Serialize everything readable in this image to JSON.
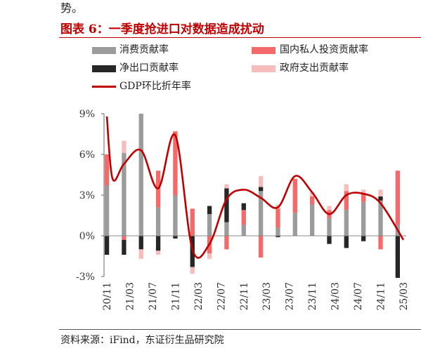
{
  "header": {
    "top_text": "势。",
    "title": "图表 6：一季度抢进口对数据造成扰动"
  },
  "legend": [
    {
      "label": "消费贡献率",
      "color": "#9b9b9b",
      "kind": "bar"
    },
    {
      "label": "国内私人投资贡献率",
      "color": "#f46a6a",
      "kind": "bar"
    },
    {
      "label": "净出口贡献率",
      "color": "#262626",
      "kind": "bar"
    },
    {
      "label": "政府支出贡献率",
      "color": "#f7bcbc",
      "kind": "bar"
    },
    {
      "label": "GDP环比折年率",
      "color": "#c00000",
      "kind": "line"
    }
  ],
  "source": "资料来源：iFind，东证衍生品研究院",
  "chart_data": {
    "type": "bar",
    "stacked": true,
    "ylim": [
      -3,
      9
    ],
    "yticks": [
      "9%",
      "6%",
      "3%",
      "0%",
      "-3%"
    ],
    "ytick_values": [
      9,
      6,
      3,
      0,
      -3
    ],
    "categories": [
      "20/11",
      "20/12",
      "21/01",
      "21/02",
      "21/03",
      "21/04",
      "21/05",
      "21/06",
      "21/07",
      "21/08",
      "21/09",
      "21/10",
      "21/11",
      "21/12",
      "22/01",
      "22/02",
      "22/03",
      "22/04",
      "22/05",
      "22/06",
      "22/07",
      "22/08",
      "22/09",
      "22/10",
      "22/11",
      "22/12",
      "23/01",
      "23/02",
      "23/03",
      "23/04",
      "23/05",
      "23/06",
      "23/07",
      "23/08",
      "23/09",
      "23/10",
      "23/11",
      "23/12",
      "24/01",
      "24/02",
      "24/03",
      "24/04",
      "24/05",
      "24/06",
      "24/07",
      "24/08",
      "24/09",
      "24/10",
      "24/11",
      "24/12",
      "25/01",
      "25/02",
      "25/03"
    ],
    "xtick_labels": [
      "20/11",
      "21/03",
      "21/07",
      "21/11",
      "22/03",
      "22/07",
      "22/11",
      "23/03",
      "23/07",
      "23/11",
      "24/03",
      "24/07",
      "24/11",
      "25/03"
    ],
    "bars": [
      {
        "x": "20/11",
        "consumption": 3.7,
        "private_investment": 2.3,
        "net_exports": -1.4,
        "government": 0.0
      },
      {
        "x": "21/02",
        "consumption": 6.1,
        "private_investment": -0.3,
        "net_exports": -1.1,
        "government": 0.9
      },
      {
        "x": "21/05",
        "consumption": 9.0,
        "private_investment": 0.0,
        "net_exports": -1.0,
        "government": -0.7
      },
      {
        "x": "21/08",
        "consumption": 2.1,
        "private_investment": 2.7,
        "net_exports": -1.1,
        "government": -0.3
      },
      {
        "x": "21/11",
        "consumption": 3.0,
        "private_investment": 4.7,
        "net_exports": -0.2,
        "government": 0.0
      },
      {
        "x": "22/02",
        "consumption": 0.0,
        "private_investment": 2.0,
        "net_exports": -2.3,
        "government": -0.5
      },
      {
        "x": "22/05",
        "consumption": 1.6,
        "private_investment": -1.3,
        "net_exports": 0.6,
        "government": -0.4
      },
      {
        "x": "22/08",
        "consumption": 1.0,
        "private_investment": -1.0,
        "net_exports": 2.5,
        "government": 0.3
      },
      {
        "x": "22/11",
        "consumption": 0.8,
        "private_investment": 1.1,
        "net_exports": 0.5,
        "government": 0.0
      },
      {
        "x": "23/02",
        "consumption": 3.3,
        "private_investment": -1.6,
        "net_exports": 0.3,
        "government": 0.8
      },
      {
        "x": "23/05",
        "consumption": 0.6,
        "private_investment": 1.4,
        "net_exports": -0.1,
        "government": 0.3
      },
      {
        "x": "23/08",
        "consumption": 1.7,
        "private_investment": 2.5,
        "net_exports": 0.0,
        "government": 0.0
      },
      {
        "x": "23/11",
        "consumption": 2.3,
        "private_investment": 0.6,
        "net_exports": 0.0,
        "government": 0.3
      },
      {
        "x": "24/02",
        "consumption": 1.3,
        "private_investment": 0.6,
        "net_exports": -0.6,
        "government": 0.3
      },
      {
        "x": "24/05",
        "consumption": 1.9,
        "private_investment": 1.4,
        "net_exports": -0.9,
        "government": 0.5
      },
      {
        "x": "24/08",
        "consumption": 2.5,
        "private_investment": 0.6,
        "net_exports": -0.4,
        "government": 0.3
      },
      {
        "x": "24/11",
        "consumption": 2.6,
        "private_investment": -1.0,
        "net_exports": 0.3,
        "government": 0.5
      },
      {
        "x": "25/02",
        "consumption": 0.8,
        "private_investment": 4.0,
        "net_exports": -3.1,
        "government": 0.0
      }
    ],
    "gdp_line": [
      {
        "x": "20/11",
        "y": 8.8
      },
      {
        "x": "20/12",
        "y": 4.2
      },
      {
        "x": "21/02",
        "y": 5.3
      },
      {
        "x": "21/05",
        "y": 6.3
      },
      {
        "x": "21/08",
        "y": 3.5
      },
      {
        "x": "21/11",
        "y": 7.4
      },
      {
        "x": "22/02",
        "y": -1.0
      },
      {
        "x": "22/05",
        "y": -0.6
      },
      {
        "x": "22/08",
        "y": 2.7
      },
      {
        "x": "22/11",
        "y": 3.4
      },
      {
        "x": "23/02",
        "y": 2.8
      },
      {
        "x": "23/05",
        "y": 2.1
      },
      {
        "x": "23/08",
        "y": 4.4
      },
      {
        "x": "23/11",
        "y": 3.2
      },
      {
        "x": "24/02",
        "y": 1.6
      },
      {
        "x": "24/05",
        "y": 3.0
      },
      {
        "x": "24/08",
        "y": 3.1
      },
      {
        "x": "24/11",
        "y": 2.4
      },
      {
        "x": "25/03",
        "y": -0.3
      }
    ]
  }
}
